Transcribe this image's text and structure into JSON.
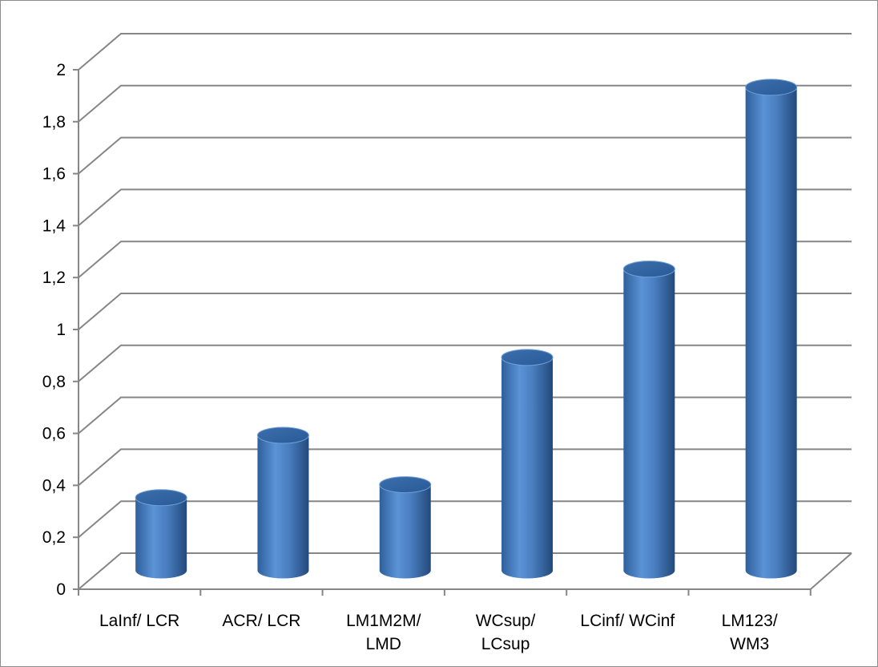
{
  "chart_data": {
    "type": "bar",
    "style": "3d-cylinder",
    "categories": [
      [
        "LaInf/ LCR"
      ],
      [
        "ACR/ LCR"
      ],
      [
        "LM1M2M/",
        "LMD"
      ],
      [
        "WCsup/",
        "LCsup"
      ],
      [
        "LCinf/ WCinf"
      ],
      [
        "LM123/",
        "WM3"
      ]
    ],
    "values": [
      0.28,
      0.52,
      0.33,
      0.82,
      1.16,
      1.86
    ],
    "ylim": [
      0,
      2
    ],
    "yticks": [
      "0",
      "0,2",
      "0,4",
      "0,6",
      "0,8",
      "1",
      "1,2",
      "1,4",
      "1,6",
      "1,8",
      "2"
    ],
    "grid": true,
    "legend": "none",
    "bar_color": "#4a7fc1",
    "grid_color": "#868686"
  }
}
